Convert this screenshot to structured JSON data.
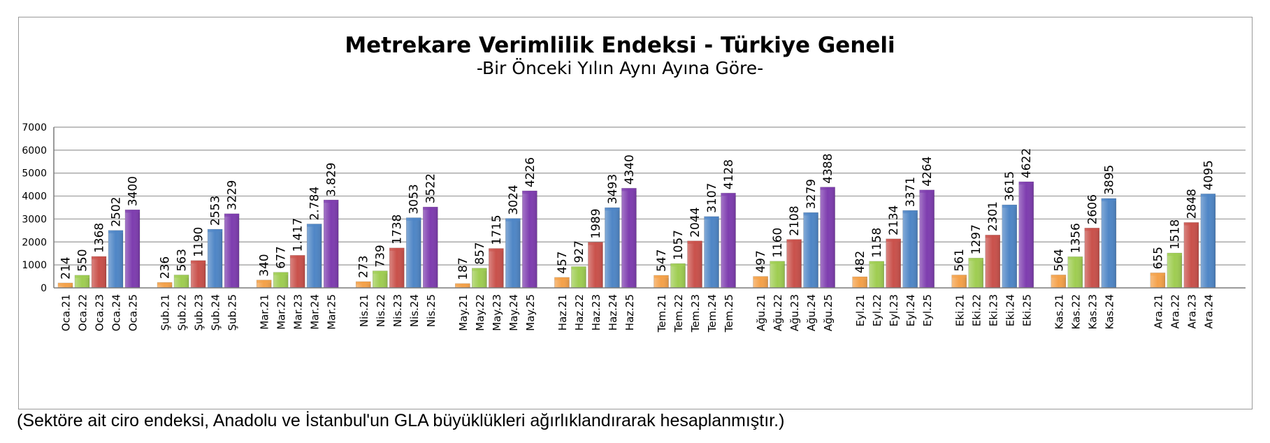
{
  "footnote": "(Sektöre ait ciro endeksi, Anadolu ve İstanbul'un GLA büyüklükleri ağırlıklandırarak hesaplanmıştır.)",
  "chart_data": {
    "type": "bar",
    "title": "Metrekare Verimlilik Endeksi - Türkiye Geneli",
    "subtitle": "-Bir Önceki Yılın Aynı Ayına Göre-",
    "xlabel": "",
    "ylabel": "",
    "ylim": [
      0,
      7000
    ],
    "yticks": [
      "0",
      "1000",
      "2000",
      "3000",
      "4000",
      "5000",
      "6000",
      "7000"
    ],
    "grid": true,
    "series_colors": [
      "#F4A14A",
      "#9FCD52",
      "#C9514B",
      "#4F86C6",
      "#7E3DAF"
    ],
    "groups": [
      {
        "bars": [
          {
            "label": "Oca.21",
            "value": 214,
            "text": "214"
          },
          {
            "label": "Oca.22",
            "value": 550,
            "text": "550"
          },
          {
            "label": "Oca.23",
            "value": 1368,
            "text": "1368"
          },
          {
            "label": "Oca.24",
            "value": 2502,
            "text": "2502"
          },
          {
            "label": "Oca.25",
            "value": 3400,
            "text": "3400"
          }
        ]
      },
      {
        "bars": [
          {
            "label": "Şub.21",
            "value": 236,
            "text": "236"
          },
          {
            "label": "Şub.22",
            "value": 563,
            "text": "563"
          },
          {
            "label": "Şub.23",
            "value": 1190,
            "text": "1190"
          },
          {
            "label": "Şub.24",
            "value": 2553,
            "text": "2553"
          },
          {
            "label": "Şub.25",
            "value": 3229,
            "text": "3229"
          }
        ]
      },
      {
        "bars": [
          {
            "label": "Mar.21",
            "value": 340,
            "text": "340"
          },
          {
            "label": "Mar.22",
            "value": 677,
            "text": "677"
          },
          {
            "label": "Mar.23",
            "value": 1417,
            "text": "1.417"
          },
          {
            "label": "Mar.24",
            "value": 2784,
            "text": "2.784"
          },
          {
            "label": "Mar.25",
            "value": 3829,
            "text": "3.829"
          }
        ]
      },
      {
        "bars": [
          {
            "label": "Nis.21",
            "value": 273,
            "text": "273"
          },
          {
            "label": "Nis.22",
            "value": 739,
            "text": "739"
          },
          {
            "label": "Nis.23",
            "value": 1738,
            "text": "1738"
          },
          {
            "label": "Nis.24",
            "value": 3053,
            "text": "3053"
          },
          {
            "label": "Nis.25",
            "value": 3522,
            "text": "3522"
          }
        ]
      },
      {
        "bars": [
          {
            "label": "May.21",
            "value": 187,
            "text": "187"
          },
          {
            "label": "May.22",
            "value": 857,
            "text": "857"
          },
          {
            "label": "May.23",
            "value": 1715,
            "text": "1715"
          },
          {
            "label": "May.24",
            "value": 3024,
            "text": "3024"
          },
          {
            "label": "May.25",
            "value": 4226,
            "text": "4226"
          }
        ]
      },
      {
        "bars": [
          {
            "label": "Haz.21",
            "value": 457,
            "text": "457"
          },
          {
            "label": "Haz.22",
            "value": 927,
            "text": "927"
          },
          {
            "label": "Haz.23",
            "value": 1989,
            "text": "1989"
          },
          {
            "label": "Haz.24",
            "value": 3493,
            "text": "3493"
          },
          {
            "label": "Haz.25",
            "value": 4340,
            "text": "4340"
          }
        ]
      },
      {
        "bars": [
          {
            "label": "Tem.21",
            "value": 547,
            "text": "547"
          },
          {
            "label": "Tem.22",
            "value": 1057,
            "text": "1057"
          },
          {
            "label": "Tem.23",
            "value": 2044,
            "text": "2044"
          },
          {
            "label": "Tem.24",
            "value": 3107,
            "text": "3107"
          },
          {
            "label": "Tem.25",
            "value": 4128,
            "text": "4128"
          }
        ]
      },
      {
        "bars": [
          {
            "label": "Ağu.21",
            "value": 497,
            "text": "497"
          },
          {
            "label": "Ağu.22",
            "value": 1160,
            "text": "1160"
          },
          {
            "label": "Ağu.23",
            "value": 2108,
            "text": "2108"
          },
          {
            "label": "Ağu.24",
            "value": 3279,
            "text": "3279"
          },
          {
            "label": "Ağu.25",
            "value": 4388,
            "text": "4388"
          }
        ]
      },
      {
        "bars": [
          {
            "label": "Eyl.21",
            "value": 482,
            "text": "482"
          },
          {
            "label": "Eyl.22",
            "value": 1158,
            "text": "1158"
          },
          {
            "label": "Eyl.23",
            "value": 2134,
            "text": "2134"
          },
          {
            "label": "Eyl.24",
            "value": 3371,
            "text": "3371"
          },
          {
            "label": "Eyl.25",
            "value": 4264,
            "text": "4264"
          }
        ]
      },
      {
        "bars": [
          {
            "label": "Eki.21",
            "value": 561,
            "text": "561"
          },
          {
            "label": "Eki.22",
            "value": 1297,
            "text": "1297"
          },
          {
            "label": "Eki.23",
            "value": 2301,
            "text": "2301"
          },
          {
            "label": "Eki.24",
            "value": 3615,
            "text": "3615"
          },
          {
            "label": "Eki.25",
            "value": 4622,
            "text": "4622"
          }
        ]
      },
      {
        "bars": [
          {
            "label": "Kas.21",
            "value": 564,
            "text": "564"
          },
          {
            "label": "Kas.22",
            "value": 1356,
            "text": "1356"
          },
          {
            "label": "Kas.23",
            "value": 2606,
            "text": "2606"
          },
          {
            "label": "Kas.24",
            "value": 3895,
            "text": "3895"
          }
        ]
      },
      {
        "bars": [
          {
            "label": "Ara.21",
            "value": 655,
            "text": "655"
          },
          {
            "label": "Ara.22",
            "value": 1518,
            "text": "1518"
          },
          {
            "label": "Ara.23",
            "value": 2848,
            "text": "2848"
          },
          {
            "label": "Ara.24",
            "value": 4095,
            "text": "4095"
          }
        ]
      }
    ]
  }
}
